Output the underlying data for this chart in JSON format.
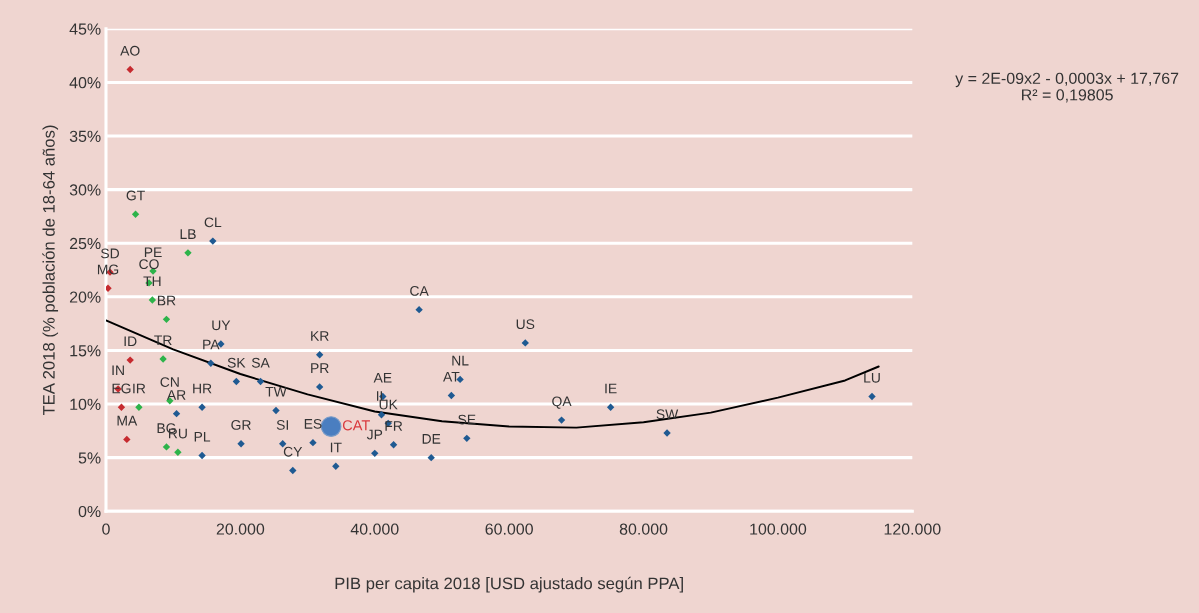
{
  "chart_data": {
    "type": "scatter",
    "xlabel": "PIB per capita 2018 [USD ajustado según PPA]",
    "ylabel": "TEA 2018 (% población de 18-64 años)",
    "xlim": [
      0,
      120000
    ],
    "ylim": [
      0,
      45
    ],
    "xticks": [
      0,
      {
        "value": 20000,
        "label": "20.000"
      },
      {
        "value": 40000,
        "label": "40.000"
      },
      {
        "value": 60000,
        "label": "60.000"
      },
      {
        "value": 80000,
        "label": "80.000"
      },
      {
        "value": 100000,
        "label": "100.000"
      },
      {
        "value": 120000,
        "label": "120.000"
      }
    ],
    "yticks": [
      {
        "value": 0,
        "label": "0%"
      },
      {
        "value": 5,
        "label": "5%"
      },
      {
        "value": 10,
        "label": "10%"
      },
      {
        "value": 15,
        "label": "15%"
      },
      {
        "value": 20,
        "label": "20%"
      },
      {
        "value": 25,
        "label": "25%"
      },
      {
        "value": 30,
        "label": "30%"
      },
      {
        "value": 35,
        "label": "35%"
      },
      {
        "value": 40,
        "label": "40%"
      },
      {
        "value": 45,
        "label": "45%"
      }
    ],
    "grid": "y",
    "series": [
      {
        "color": "#c62a2f",
        "marker": "diamond",
        "x": [
          3600,
          600,
          300,
          3600,
          1800,
          2300,
          3100
        ],
        "values": [
          41.2,
          22.3,
          20.8,
          14.1,
          11.4,
          9.7,
          6.7
        ]
      },
      {
        "color": "#2db34a",
        "marker": "diamond",
        "x": [
          4400,
          12200,
          7000,
          6400,
          6900,
          9000,
          8500,
          4900,
          9500,
          9000,
          10700
        ],
        "values": [
          27.7,
          24.1,
          22.4,
          21.3,
          19.7,
          17.9,
          14.2,
          9.7,
          10.3,
          6.0,
          5.5
        ]
      },
      {
        "color": "#1f5a92",
        "marker": "diamond",
        "x": [
          15900,
          17100,
          15600,
          19400,
          23000,
          31800,
          31800,
          10500,
          14300,
          14300,
          20100,
          25300,
          26300,
          30800,
          27800,
          34200,
          46600,
          41200,
          41000,
          42000,
          42800,
          40000,
          48400,
          53700,
          51400,
          52700,
          62400,
          67800,
          75100,
          83500,
          114000
        ],
        "values": [
          25.2,
          15.6,
          13.8,
          12.1,
          12.1,
          14.6,
          11.6,
          9.1,
          9.7,
          5.2,
          6.3,
          9.4,
          6.3,
          6.4,
          3.8,
          4.2,
          18.8,
          10.7,
          9.0,
          8.2,
          6.2,
          5.4,
          5.0,
          6.8,
          10.8,
          12.3,
          15.7,
          8.5,
          9.7,
          7.3,
          10.7
        ]
      },
      {
        "name": "CAT",
        "color": "#4a7ec0",
        "marker": "circle",
        "x": [
          33500
        ],
        "values": [
          7.9
        ]
      },
      {
        "type": "line",
        "color": "#000000",
        "marker": "none",
        "x": [
          0,
          10000,
          20000,
          30000,
          40000,
          50000,
          60000,
          70000,
          80000,
          90000,
          100000,
          110000,
          115000
        ],
        "values": [
          17.8,
          15.1,
          12.8,
          10.9,
          9.3,
          8.4,
          7.9,
          7.8,
          8.3,
          9.2,
          10.6,
          12.2,
          13.5
        ]
      }
    ],
    "annotations": [
      {
        "text": "AO",
        "x": 3600,
        "y": 41.2
      },
      {
        "text": "SD",
        "x": 600,
        "y": 22.3
      },
      {
        "text": "MG",
        "x": 300,
        "y": 20.8
      },
      {
        "text": "ID",
        "x": 3600,
        "y": 14.1
      },
      {
        "text": "IN",
        "x": 1800,
        "y": 11.4
      },
      {
        "text": "EG",
        "x": 2300,
        "y": 9.7
      },
      {
        "text": "MA",
        "x": 3100,
        "y": 6.7
      },
      {
        "text": "GT",
        "x": 4400,
        "y": 27.7
      },
      {
        "text": "LB",
        "x": 12200,
        "y": 24.1
      },
      {
        "text": "PE",
        "x": 7000,
        "y": 22.4
      },
      {
        "text": "CO",
        "x": 6400,
        "y": 21.3
      },
      {
        "text": "TH",
        "x": 6900,
        "y": 19.7
      },
      {
        "text": "BR",
        "x": 9000,
        "y": 17.9
      },
      {
        "text": "TR",
        "x": 8500,
        "y": 14.2
      },
      {
        "text": "IR",
        "x": 4900,
        "y": 9.7
      },
      {
        "text": "CN",
        "x": 9500,
        "y": 10.3
      },
      {
        "text": "BG",
        "x": 9000,
        "y": 6.0
      },
      {
        "text": "RU",
        "x": 10700,
        "y": 5.5
      },
      {
        "text": "CL",
        "x": 15900,
        "y": 25.2
      },
      {
        "text": "UY",
        "x": 17100,
        "y": 15.6
      },
      {
        "text": "PA",
        "x": 15600,
        "y": 13.8
      },
      {
        "text": "SK",
        "x": 19400,
        "y": 12.1
      },
      {
        "text": "SA",
        "x": 23000,
        "y": 12.1
      },
      {
        "text": "KR",
        "x": 31800,
        "y": 14.6
      },
      {
        "text": "PR",
        "x": 31800,
        "y": 11.6
      },
      {
        "text": "AR",
        "x": 10500,
        "y": 9.1
      },
      {
        "text": "HR",
        "x": 14300,
        "y": 9.7
      },
      {
        "text": "PL",
        "x": 14300,
        "y": 5.2
      },
      {
        "text": "GR",
        "x": 20100,
        "y": 6.3
      },
      {
        "text": "TW",
        "x": 25300,
        "y": 9.4
      },
      {
        "text": "SI",
        "x": 26300,
        "y": 6.3
      },
      {
        "text": "ES",
        "x": 30800,
        "y": 6.4
      },
      {
        "text": "CY",
        "x": 27800,
        "y": 3.8
      },
      {
        "text": "IT",
        "x": 34200,
        "y": 4.2
      },
      {
        "text": "CA",
        "x": 46600,
        "y": 18.8
      },
      {
        "text": "AE",
        "x": 41200,
        "y": 10.7
      },
      {
        "text": "IL",
        "x": 41000,
        "y": 9.0
      },
      {
        "text": "UK",
        "x": 42000,
        "y": 8.2
      },
      {
        "text": "FR",
        "x": 42800,
        "y": 6.2
      },
      {
        "text": "JP",
        "x": 40000,
        "y": 5.4
      },
      {
        "text": "DE",
        "x": 48400,
        "y": 5.0
      },
      {
        "text": "SE",
        "x": 53700,
        "y": 6.8
      },
      {
        "text": "AT",
        "x": 51400,
        "y": 10.8
      },
      {
        "text": "NL",
        "x": 52700,
        "y": 12.3
      },
      {
        "text": "US",
        "x": 62400,
        "y": 15.7
      },
      {
        "text": "QA",
        "x": 67800,
        "y": 8.5
      },
      {
        "text": "IE",
        "x": 75100,
        "y": 9.7
      },
      {
        "text": "SW",
        "x": 83500,
        "y": 7.3
      },
      {
        "text": "LU",
        "x": 114000,
        "y": 10.7
      },
      "y = 2E-09x2 - 0,0003x + 17,767",
      "R² = 0,19805"
    ]
  }
}
